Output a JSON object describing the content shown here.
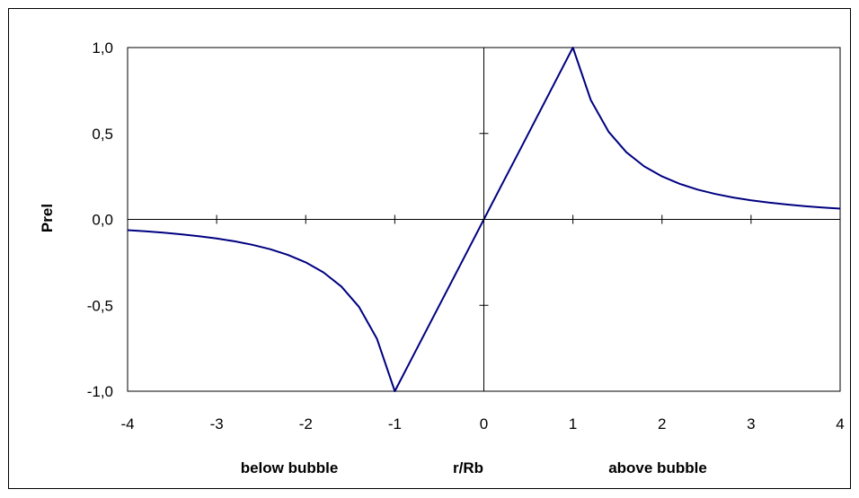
{
  "chart_data": {
    "type": "line",
    "title": "",
    "xlabel": "r/Rb",
    "ylabel": "Prel",
    "annotations": {
      "left": "below bubble",
      "right": "above bubble"
    },
    "xlim": [
      -4,
      4
    ],
    "ylim": [
      -1.0,
      1.0
    ],
    "x_ticks": [
      -4,
      -3,
      -2,
      -1,
      0,
      1,
      2,
      3,
      4
    ],
    "x_tick_labels": [
      "-4",
      "-3",
      "-2",
      "-1",
      "0",
      "1",
      "2",
      "3",
      "4"
    ],
    "y_ticks": [
      -1.0,
      -0.5,
      0.0,
      0.5,
      1.0
    ],
    "y_tick_labels": [
      "-1,0",
      "-0,5",
      "0,0",
      "0,5",
      "1,0"
    ],
    "grid": false,
    "legend": "none",
    "colors": {
      "line": "#000080",
      "axes": "#000000",
      "frame": "#000000"
    },
    "series": [
      {
        "x": [
          -4.0,
          -3.8,
          -3.6,
          -3.4,
          -3.2,
          -3.0,
          -2.8,
          -2.6,
          -2.4,
          -2.2,
          -2.0,
          -1.8,
          -1.6,
          -1.4,
          -1.2,
          -1.0,
          -0.8,
          -0.6,
          -0.4,
          -0.2,
          0.0,
          0.2,
          0.4,
          0.6,
          0.8,
          1.0,
          1.2,
          1.4,
          1.6,
          1.8,
          2.0,
          2.2,
          2.4,
          2.6,
          2.8,
          3.0,
          3.2,
          3.4,
          3.6,
          3.8,
          4.0
        ],
        "values": [
          -0.0625,
          -0.0693,
          -0.0772,
          -0.0865,
          -0.0977,
          -0.1111,
          -0.1276,
          -0.1479,
          -0.1736,
          -0.2066,
          -0.25,
          -0.3086,
          -0.3906,
          -0.5102,
          -0.6944,
          -1.0,
          -0.8,
          -0.6,
          -0.4,
          -0.2,
          0.0,
          0.2,
          0.4,
          0.6,
          0.8,
          1.0,
          0.6944,
          0.5102,
          0.3906,
          0.3086,
          0.25,
          0.2066,
          0.1736,
          0.1479,
          0.1276,
          0.1111,
          0.0977,
          0.0865,
          0.0772,
          0.0693,
          0.0625
        ]
      }
    ]
  }
}
